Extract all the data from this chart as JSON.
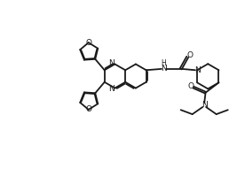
{
  "background_color": "#ffffff",
  "line_color": "#1a1a1a",
  "line_width": 1.3,
  "fig_width": 2.76,
  "fig_height": 1.91,
  "dpi": 100,
  "xlim": [
    0,
    10
  ],
  "ylim": [
    0,
    7
  ]
}
